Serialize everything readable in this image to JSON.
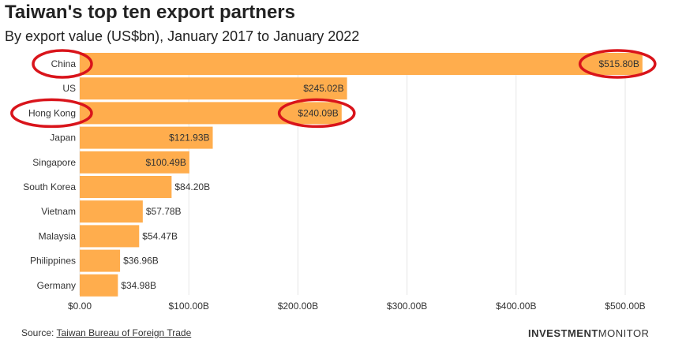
{
  "title": "Taiwan's top ten export partners",
  "subtitle": "By export value (US$bn), January 2017 to January 2022",
  "source_label": "Source: ",
  "source_link": "Taiwan Bureau of Foreign Trade",
  "brand_bold": "INVESTMENT",
  "brand_regular": "MONITOR",
  "colors": {
    "bar": "#ffad4d",
    "grid": "#e6e6e6",
    "highlight": "#d9141b"
  },
  "chart_data": {
    "type": "bar",
    "orientation": "horizontal",
    "title": "Taiwan's top ten export partners",
    "subtitle": "By export value (US$bn), January 2017 to January 2022",
    "categories": [
      "China",
      "US",
      "Hong Kong",
      "Japan",
      "Singapore",
      "South Korea",
      "Vietnam",
      "Malaysia",
      "Philippines",
      "Germany"
    ],
    "values": [
      515.8,
      245.02,
      240.09,
      121.93,
      100.49,
      84.2,
      57.78,
      54.47,
      36.96,
      34.98
    ],
    "labels": [
      "$515.80B",
      "$245.02B",
      "$240.09B",
      "$121.93B",
      "$100.49B",
      "$84.20B",
      "$57.78B",
      "$54.47B",
      "$36.96B",
      "$34.98B"
    ],
    "xlim": [
      0,
      500
    ],
    "xticks": [
      0,
      100,
      200,
      300,
      400,
      500
    ],
    "xtick_labels": [
      "$0.00",
      "$100.00B",
      "$200.00B",
      "$300.00B",
      "$400.00B",
      "$500.00B"
    ],
    "grid": true,
    "annotations": [
      {
        "type": "circle",
        "target": "category",
        "index": 0
      },
      {
        "type": "circle",
        "target": "value-label",
        "index": 0
      },
      {
        "type": "circle",
        "target": "category",
        "index": 2
      },
      {
        "type": "circle",
        "target": "value-label",
        "index": 2
      }
    ]
  }
}
